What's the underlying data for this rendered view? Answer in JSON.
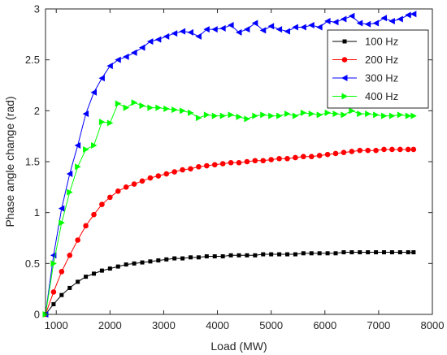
{
  "chart_data": {
    "type": "line",
    "title": "",
    "xlabel": "Load (MW)",
    "ylabel": "Phase angle change (rad)",
    "xlim": [
      800,
      8000
    ],
    "ylim": [
      0,
      3
    ],
    "xticks": [
      1000,
      2000,
      3000,
      4000,
      5000,
      6000,
      7000,
      8000
    ],
    "xtick_labels": [
      "1000",
      "2000",
      "3000",
      "4000",
      "5000",
      "6000",
      "7000",
      "8000"
    ],
    "yticks": [
      0,
      0.5,
      1,
      1.5,
      2,
      2.5,
      3
    ],
    "ytick_labels": [
      "0",
      "0.5",
      "1",
      "1.5",
      "2",
      "2.5",
      "3"
    ],
    "grid": false,
    "legend_position": "top-right",
    "x": [
      800,
      950,
      1100,
      1250,
      1400,
      1550,
      1700,
      1850,
      2000,
      2150,
      2300,
      2450,
      2600,
      2750,
      2900,
      3050,
      3200,
      3350,
      3500,
      3650,
      3800,
      3950,
      4100,
      4250,
      4400,
      4550,
      4700,
      4850,
      5000,
      5150,
      5300,
      5450,
      5600,
      5750,
      5900,
      6050,
      6200,
      6350,
      6500,
      6650,
      6800,
      6950,
      7100,
      7250,
      7400,
      7550,
      7650
    ],
    "series": [
      {
        "name": "100 Hz",
        "color": "#000000",
        "marker": "square",
        "values": [
          0,
          0.1,
          0.19,
          0.26,
          0.32,
          0.37,
          0.4,
          0.43,
          0.45,
          0.47,
          0.49,
          0.5,
          0.51,
          0.52,
          0.53,
          0.54,
          0.55,
          0.55,
          0.56,
          0.56,
          0.57,
          0.57,
          0.57,
          0.58,
          0.58,
          0.58,
          0.58,
          0.59,
          0.59,
          0.59,
          0.59,
          0.59,
          0.6,
          0.6,
          0.6,
          0.6,
          0.6,
          0.61,
          0.61,
          0.61,
          0.61,
          0.61,
          0.61,
          0.61,
          0.61,
          0.61,
          0.61
        ]
      },
      {
        "name": "200 Hz",
        "color": "#ff0000",
        "marker": "circle",
        "values": [
          0,
          0.22,
          0.42,
          0.58,
          0.73,
          0.87,
          0.98,
          1.08,
          1.15,
          1.21,
          1.25,
          1.28,
          1.31,
          1.34,
          1.36,
          1.38,
          1.4,
          1.42,
          1.43,
          1.45,
          1.46,
          1.47,
          1.48,
          1.49,
          1.49,
          1.5,
          1.51,
          1.51,
          1.52,
          1.53,
          1.53,
          1.54,
          1.55,
          1.55,
          1.56,
          1.57,
          1.58,
          1.59,
          1.6,
          1.61,
          1.61,
          1.61,
          1.62,
          1.62,
          1.62,
          1.62,
          1.62
        ]
      },
      {
        "name": "300 Hz",
        "color": "#0000ff",
        "marker": "triangle-left",
        "values": [
          0,
          0.58,
          1.04,
          1.38,
          1.66,
          1.97,
          2.18,
          2.32,
          2.44,
          2.5,
          2.53,
          2.57,
          2.62,
          2.68,
          2.7,
          2.73,
          2.76,
          2.78,
          2.77,
          2.73,
          2.8,
          2.8,
          2.81,
          2.84,
          2.77,
          2.8,
          2.86,
          2.79,
          2.83,
          2.8,
          2.78,
          2.82,
          2.82,
          2.84,
          2.82,
          2.88,
          2.87,
          2.9,
          2.93,
          2.86,
          2.85,
          2.86,
          2.91,
          2.88,
          2.9,
          2.94,
          2.95
        ]
      },
      {
        "name": "400 Hz",
        "color": "#00ff00",
        "marker": "triangle-right",
        "values": [
          0,
          0.5,
          0.9,
          1.2,
          1.45,
          1.62,
          1.66,
          1.89,
          1.88,
          2.07,
          2.03,
          2.08,
          2.05,
          2.03,
          2.03,
          2.02,
          2.01,
          2.0,
          1.98,
          1.93,
          1.96,
          1.95,
          1.95,
          1.96,
          1.94,
          1.92,
          1.95,
          1.96,
          1.95,
          1.95,
          1.97,
          1.95,
          1.98,
          1.97,
          1.96,
          1.98,
          1.97,
          1.96,
          2.0,
          1.97,
          1.97,
          1.96,
          1.95,
          1.95,
          1.96,
          1.95,
          1.95
        ]
      }
    ]
  }
}
